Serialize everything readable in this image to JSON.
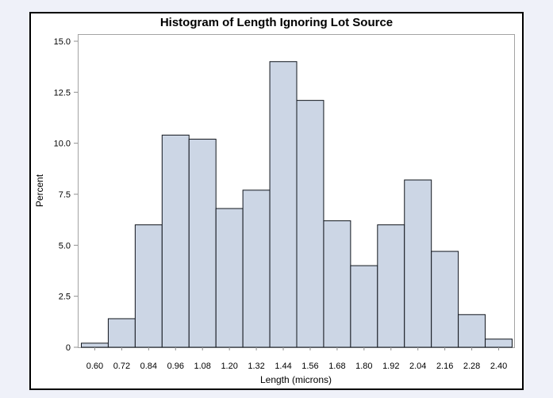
{
  "chart_data": {
    "type": "bar",
    "subtype": "histogram",
    "title": "Histogram of Length Ignoring Lot Source",
    "xlabel": "Length (microns)",
    "ylabel": "Percent",
    "categories": [
      "0.60",
      "0.72",
      "0.84",
      "0.96",
      "1.08",
      "1.20",
      "1.32",
      "1.44",
      "1.56",
      "1.68",
      "1.80",
      "1.92",
      "2.04",
      "2.16",
      "2.28",
      "2.40"
    ],
    "values": [
      0.2,
      1.4,
      6.0,
      10.4,
      10.2,
      6.8,
      7.7,
      14.0,
      12.1,
      6.2,
      4.0,
      6.0,
      8.2,
      4.7,
      1.6,
      0.4
    ],
    "bin_width_microns": 0.12,
    "y_ticks": [
      "0",
      "2.5",
      "5.0",
      "7.5",
      "10.0",
      "12.5",
      "15.0"
    ],
    "y_tick_values": [
      0,
      2.5,
      5,
      7.5,
      10,
      12.5,
      15
    ],
    "ylim": [
      0,
      15.35
    ],
    "xlim": [
      0.525,
      2.475
    ],
    "grid": false,
    "legend_position": "none",
    "colors": {
      "page_bg": "#eff1f9",
      "graph_bg": "#ffffff",
      "frame": "#000000",
      "plot_border": "#a3a3a3",
      "plot_bg": "#ffffff",
      "bar_fill": "#ccd6e5",
      "bar_stroke": "#10151c",
      "tick": "#8f8f8f",
      "text": "#000000"
    }
  }
}
